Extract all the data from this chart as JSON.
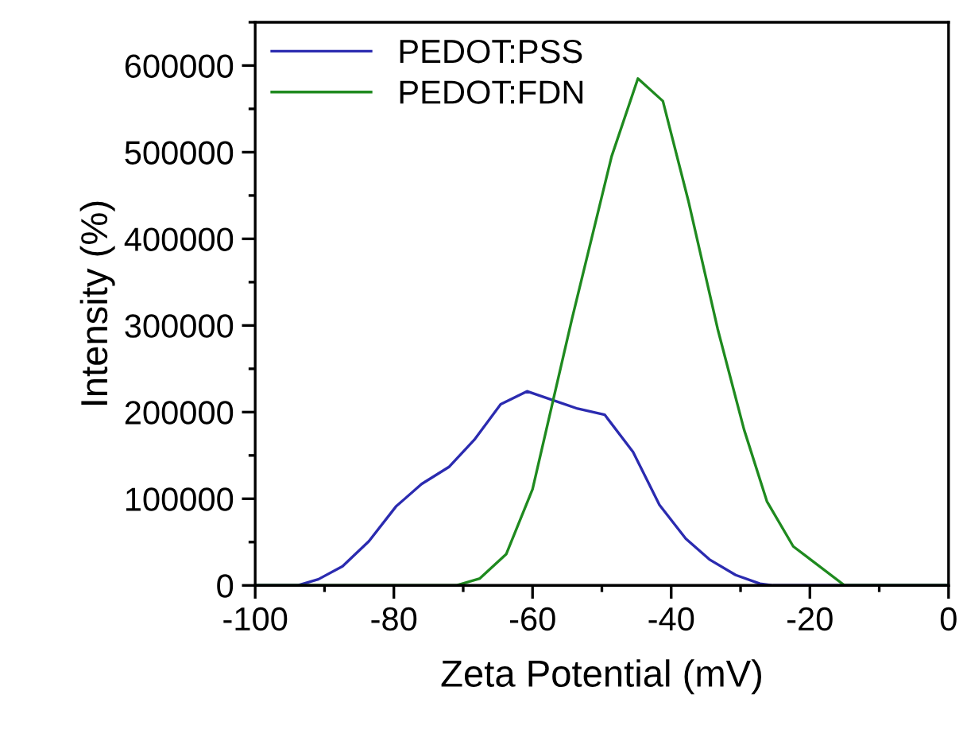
{
  "chart_data": {
    "type": "line",
    "xlabel": "Zeta Potential (mV)",
    "ylabel": "Intensity (%)",
    "xlim": [
      -100,
      0
    ],
    "xticks": [
      -100,
      -80,
      -60,
      -40,
      -20,
      0
    ],
    "ylim": [
      0,
      650000
    ],
    "yticks": [
      0,
      100000,
      200000,
      300000,
      400000,
      500000,
      600000
    ],
    "legend": "top left",
    "grid": false,
    "marker": "none",
    "line_style": "solid",
    "series": [
      {
        "name": "PEDOT:PSS",
        "color": "#2b2bb0",
        "x": [
          -100,
          -93.9,
          -90.9,
          -87.4,
          -83.6,
          -79.7,
          -76,
          -72,
          -68.4,
          -64.6,
          -60.8,
          -53.5,
          -49.6,
          -45.5,
          -41.7,
          -37.9,
          -34.5,
          -30.7,
          -27.2,
          -25.3,
          0
        ],
        "values": [
          0,
          0,
          7000,
          22000,
          51000,
          91000,
          117000,
          137000,
          168000,
          209000,
          224000,
          204000,
          197000,
          154000,
          93000,
          54000,
          30000,
          12000,
          2000,
          0,
          0
        ]
      },
      {
        "name": "PEDOT:FDN",
        "color": "#1f8a1f",
        "x": [
          -100,
          -71,
          -67.6,
          -63.8,
          -60,
          -54.3,
          -48.6,
          -44.8,
          -41.2,
          -37.5,
          -33.3,
          -29.5,
          -26.2,
          -22.4,
          -15,
          0
        ],
        "values": [
          0,
          0,
          8000,
          36000,
          111000,
          308000,
          495000,
          585000,
          559000,
          443000,
          296000,
          180000,
          97000,
          45000,
          0,
          0
        ]
      }
    ]
  }
}
